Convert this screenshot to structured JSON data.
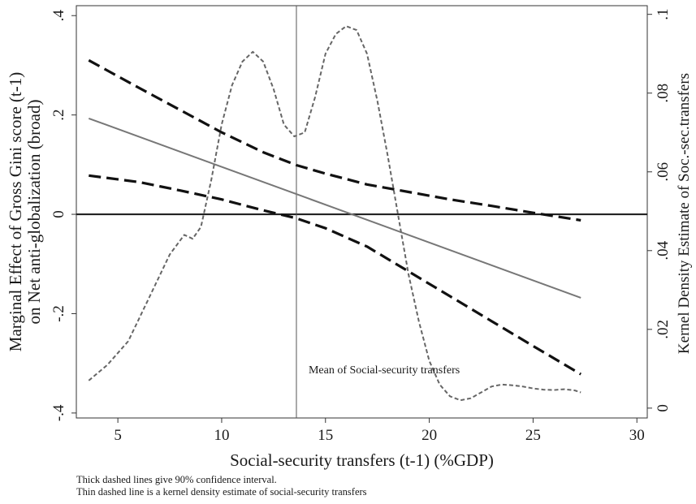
{
  "chart_data": {
    "type": "line",
    "xlabel": "Social-security transfers (t-1) (%GDP)",
    "ylabel_left": [
      "Marginal Effect of Gross Gini score (t-1)",
      "on Net anti-globalization (broad)"
    ],
    "ylabel_right": "Kernel Density Estimate of Soc.-sec.transfers",
    "xlim": [
      3,
      30.5
    ],
    "ylim_left": [
      -0.41,
      0.42
    ],
    "ylim_right": [
      -0.0025,
      0.1022
    ],
    "x_ticks": [
      5,
      10,
      15,
      20,
      25,
      30
    ],
    "x_tick_labels": [
      "5",
      "10",
      "15",
      "20",
      "25",
      "30"
    ],
    "y_left_ticks": [
      -0.4,
      -0.2,
      0,
      0.2,
      0.4
    ],
    "y_left_tick_labels": [
      "-.4",
      "-.2",
      "0",
      ".2",
      ".4"
    ],
    "y_right_ticks": [
      0,
      0.02,
      0.04,
      0.06,
      0.08,
      0.1
    ],
    "y_right_tick_labels": [
      "0",
      ".02",
      ".04",
      ".06",
      ".08",
      ".1"
    ],
    "zero_line": 0,
    "mean_line": {
      "x": 13.6,
      "label": "Mean of Social-security transfers",
      "label_y": -0.325
    },
    "series": [
      {
        "style": "solid-thin",
        "color": "#777777",
        "axis": "left",
        "x": [
          3.6,
          27.3
        ],
        "y": [
          0.193,
          -0.168
        ]
      },
      {
        "style": "dashed-thick",
        "axis": "left",
        "x": [
          3.6,
          6,
          8,
          10,
          12,
          13.6,
          15,
          17,
          19,
          21,
          23,
          25,
          27.3
        ],
        "y": [
          0.31,
          0.255,
          0.21,
          0.165,
          0.125,
          0.099,
          0.082,
          0.06,
          0.045,
          0.03,
          0.017,
          0.003,
          -0.012
        ]
      },
      {
        "style": "dashed-thick",
        "axis": "left",
        "x": [
          3.6,
          6,
          8,
          10,
          12,
          13.6,
          15,
          17,
          19,
          21,
          23,
          25,
          27.3
        ],
        "y": [
          0.078,
          0.065,
          0.048,
          0.03,
          0.008,
          -0.008,
          -0.028,
          -0.065,
          -0.115,
          -0.165,
          -0.215,
          -0.265,
          -0.322
        ]
      },
      {
        "style": "dashed-thin",
        "color": "#666666",
        "axis": "right",
        "x": [
          3.6,
          4.5,
          5.5,
          6.5,
          7.5,
          8.2,
          8.6,
          9.0,
          9.5,
          10.0,
          10.5,
          11.0,
          11.5,
          12.0,
          12.5,
          13.0,
          13.5,
          14.0,
          14.5,
          15.0,
          15.5,
          16.0,
          16.5,
          17.0,
          17.5,
          18.0,
          18.5,
          19.0,
          19.5,
          20.0,
          20.5,
          21.0,
          21.5,
          22.0,
          22.5,
          23.0,
          23.5,
          24.0,
          24.5,
          25.0,
          25.5,
          26.0,
          26.5,
          27.0,
          27.3
        ],
        "y": [
          0.007,
          0.011,
          0.017,
          0.028,
          0.039,
          0.044,
          0.043,
          0.046,
          0.058,
          0.072,
          0.082,
          0.088,
          0.0905,
          0.088,
          0.081,
          0.072,
          0.069,
          0.07,
          0.079,
          0.09,
          0.095,
          0.097,
          0.096,
          0.09,
          0.078,
          0.064,
          0.049,
          0.034,
          0.022,
          0.012,
          0.006,
          0.003,
          0.002,
          0.0025,
          0.004,
          0.0055,
          0.006,
          0.0058,
          0.0055,
          0.005,
          0.0047,
          0.0046,
          0.0048,
          0.0045,
          0.004
        ]
      }
    ]
  },
  "notes": [
    "Thick dashed lines give 90% confidence interval.",
    "Thin dashed line is a kernel density estimate of social-security transfers"
  ]
}
